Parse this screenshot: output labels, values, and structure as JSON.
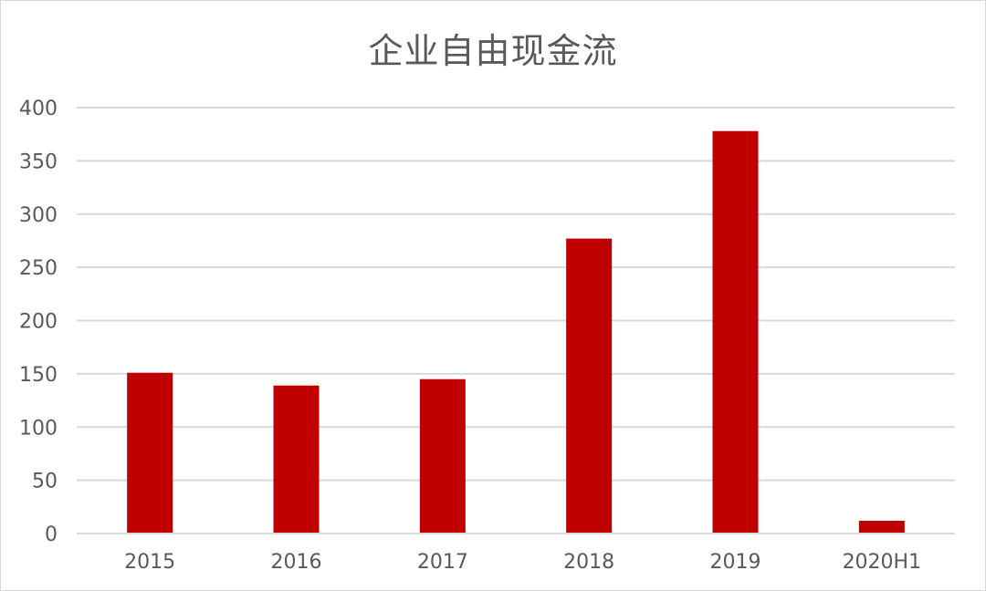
{
  "chart_data": {
    "type": "bar",
    "title": "企业自由现金流",
    "categories": [
      "2015",
      "2016",
      "2017",
      "2018",
      "2019",
      "2020H1"
    ],
    "values": [
      151,
      139,
      145,
      277,
      378,
      12
    ],
    "ylim": [
      0,
      400
    ],
    "yticks": [
      0,
      50,
      100,
      150,
      200,
      250,
      300,
      350,
      400
    ],
    "xlabel": "",
    "ylabel": "",
    "grid": true,
    "legend": "none",
    "bar_color": "#c00000",
    "grid_color": "#d9d9d9",
    "text_color": "#595959"
  }
}
